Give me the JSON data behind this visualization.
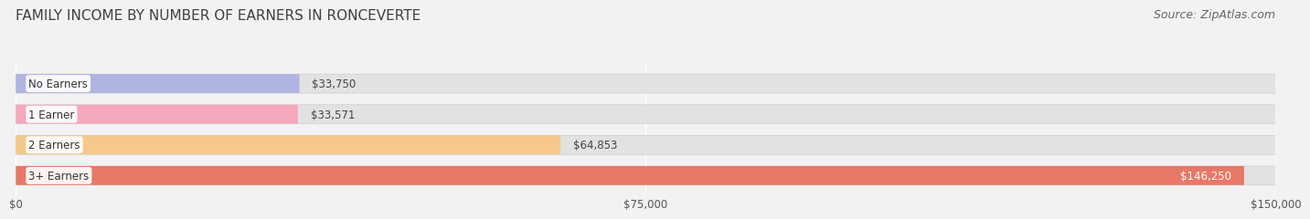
{
  "title": "FAMILY INCOME BY NUMBER OF EARNERS IN RONCEVERTE",
  "source": "Source: ZipAtlas.com",
  "categories": [
    "No Earners",
    "1 Earner",
    "2 Earners",
    "3+ Earners"
  ],
  "values": [
    33750,
    33571,
    64853,
    146250
  ],
  "bar_colors": [
    "#b0b4e0",
    "#f5a8bc",
    "#f5c98a",
    "#e87868"
  ],
  "label_colors": [
    "#333333",
    "#333333",
    "#333333",
    "#ffffff"
  ],
  "value_labels": [
    "$33,750",
    "$33,571",
    "$64,853",
    "$146,250"
  ],
  "value_inside": [
    false,
    false,
    false,
    true
  ],
  "xlim": [
    0,
    150000
  ],
  "xticks": [
    0,
    75000,
    150000
  ],
  "xtick_labels": [
    "$0",
    "$75,000",
    "$150,000"
  ],
  "background_color": "#f2f2f2",
  "bar_background_color": "#e2e2e2",
  "title_fontsize": 11,
  "source_fontsize": 9,
  "bar_height": 0.62,
  "bar_gap": 0.18
}
